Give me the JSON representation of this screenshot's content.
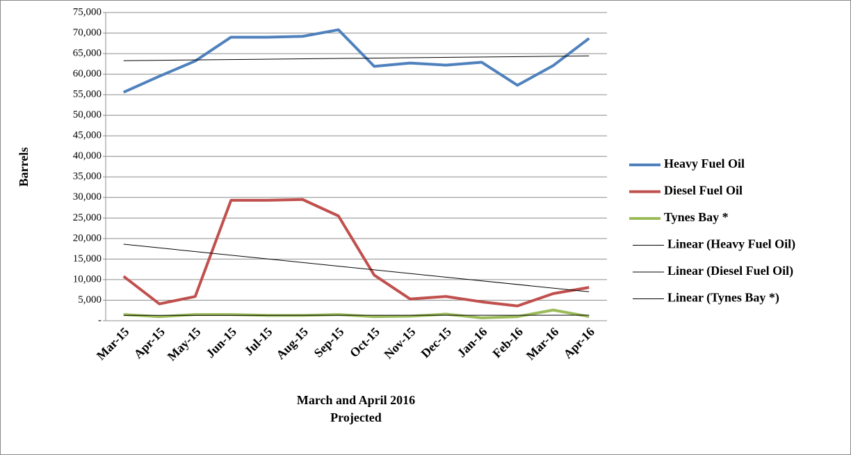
{
  "chart_data": {
    "type": "line",
    "ylabel": "Barrels",
    "xlabel": [
      "March and April 2016",
      "Projected"
    ],
    "categories": [
      "Mar-15",
      "Apr-15",
      "May-15",
      "Jun-15",
      "Jul-15",
      "Aug-15",
      "Sep-15",
      "Oct-15",
      "Nov-15",
      "Dec-15",
      "Jan-16",
      "Feb-16",
      "Mar-16",
      "Apr-16"
    ],
    "series": [
      {
        "name": "Heavy Fuel Oil",
        "color": "#4f81bd",
        "trendline": "Linear (Heavy Fuel Oil)",
        "values": [
          55600,
          59500,
          63200,
          69000,
          69000,
          69200,
          70800,
          61900,
          62700,
          62200,
          62900,
          57300,
          62100,
          68700
        ]
      },
      {
        "name": "Diesel Fuel Oil",
        "color": "#c0504d",
        "trendline": "Linear (Diesel Fuel Oil)",
        "values": [
          10800,
          4100,
          5900,
          29300,
          29300,
          29500,
          25500,
          11100,
          5300,
          5900,
          4600,
          3600,
          6600,
          8100
        ]
      },
      {
        "name": "Tynes Bay *",
        "color": "#9bbb59",
        "trendline": "Linear (Tynes Bay *)",
        "values": [
          1500,
          1000,
          1500,
          1500,
          1300,
          1300,
          1500,
          1000,
          1100,
          1600,
          700,
          1000,
          2600,
          1000
        ]
      }
    ],
    "ylim": [
      0,
      75000
    ],
    "yticks": [
      {
        "value": 0,
        "label": "-"
      },
      {
        "value": 5000,
        "label": "5,000"
      },
      {
        "value": 10000,
        "label": "10,000"
      },
      {
        "value": 15000,
        "label": "15,000"
      },
      {
        "value": 20000,
        "label": "20,000"
      },
      {
        "value": 25000,
        "label": "25,000"
      },
      {
        "value": 30000,
        "label": "30,000"
      },
      {
        "value": 35000,
        "label": "35,000"
      },
      {
        "value": 40000,
        "label": "40,000"
      },
      {
        "value": 45000,
        "label": "45,000"
      },
      {
        "value": 50000,
        "label": "50,000"
      },
      {
        "value": 55000,
        "label": "55,000"
      },
      {
        "value": 60000,
        "label": "60,000"
      },
      {
        "value": 65000,
        "label": "65,000"
      },
      {
        "value": 70000,
        "label": "70,000"
      },
      {
        "value": 75000,
        "label": "75,000"
      }
    ],
    "grid": true,
    "legend": "right"
  }
}
